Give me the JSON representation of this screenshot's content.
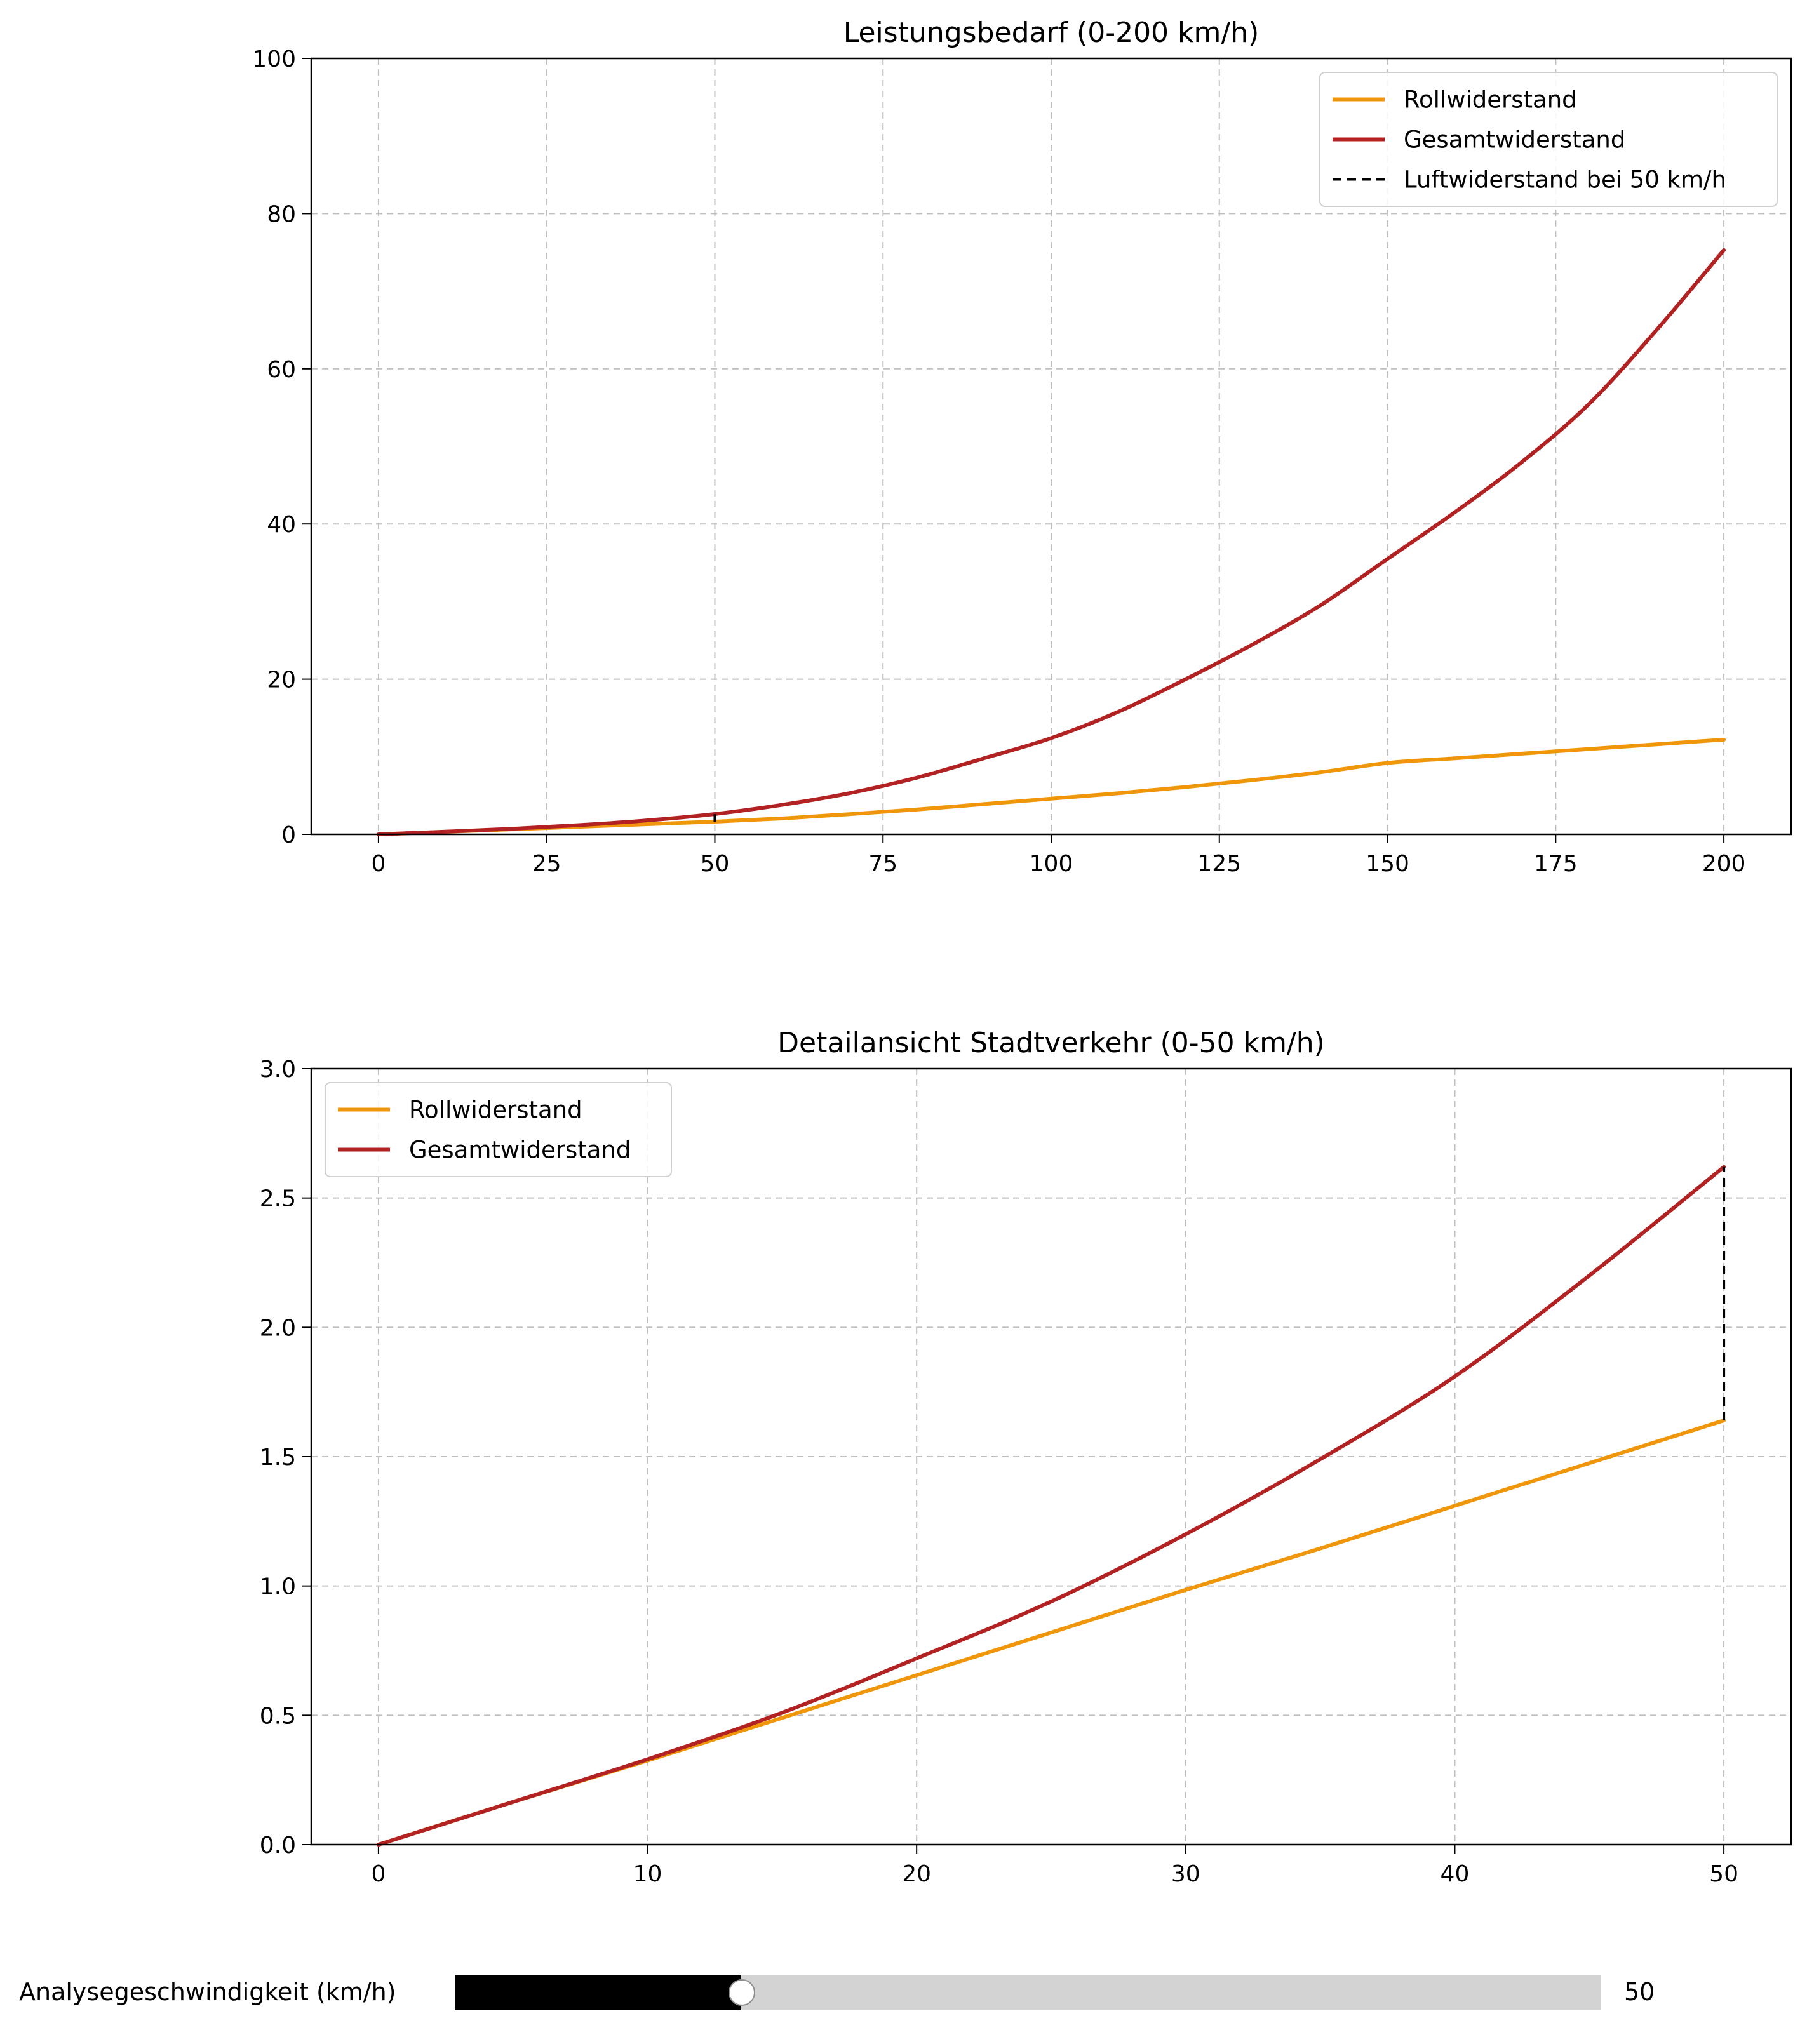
{
  "chart_data": [
    {
      "type": "line",
      "title": "Leistungsbedarf (0-200 km/h)",
      "xlabel": "",
      "ylabel": "",
      "xlim": [
        -10,
        210
      ],
      "ylim": [
        0,
        100
      ],
      "xticks": [
        0,
        25,
        50,
        75,
        100,
        125,
        150,
        175,
        200
      ],
      "yticks": [
        0,
        20,
        40,
        60,
        80,
        100
      ],
      "tick_labels_x": [
        "0",
        "25",
        "50",
        "75",
        "100",
        "125",
        "150",
        "175",
        "200"
      ],
      "tick_labels_y": [
        "0",
        "20",
        "40",
        "60",
        "80",
        "100"
      ],
      "grid": true,
      "legend_position": "top-right",
      "legend": [
        "Rollwiderstand",
        "Gesamtwiderstand",
        "Luftwiderstand bei 50 km/h"
      ],
      "x": [
        0,
        10,
        20,
        30,
        40,
        50,
        60,
        70,
        80,
        90,
        100,
        110,
        120,
        130,
        140,
        150,
        160,
        170,
        180,
        190,
        200
      ],
      "series": [
        {
          "name": "Rollwiderstand",
          "color": "#f0960a",
          "style": "solid",
          "values": [
            0,
            0.33,
            0.65,
            0.98,
            1.31,
            1.64,
            2.05,
            2.6,
            3.2,
            3.9,
            4.6,
            5.3,
            6.1,
            7.0,
            8.0,
            9.2,
            9.8,
            10.4,
            11.0,
            11.6,
            12.2
          ]
        },
        {
          "name": "Gesamtwiderstand",
          "color": "#b22222",
          "style": "solid",
          "values": [
            0,
            0.35,
            0.72,
            1.2,
            1.8,
            2.62,
            3.8,
            5.3,
            7.3,
            9.8,
            12.4,
            15.8,
            20.0,
            24.5,
            29.5,
            35.5,
            41.5,
            48.0,
            55.5,
            65.0,
            75.3
          ]
        },
        {
          "name": "Luftwiderstand bei 50 km/h",
          "color": "#000000",
          "style": "dashed",
          "segment": {
            "x": 50,
            "y0": 1.64,
            "y1": 2.62
          }
        }
      ]
    },
    {
      "type": "line",
      "title": "Detailansicht Stadtverkehr (0-50 km/h)",
      "xlabel": "",
      "ylabel": "",
      "xlim": [
        -2.5,
        52.5
      ],
      "ylim": [
        0,
        3
      ],
      "xticks": [
        0,
        10,
        20,
        30,
        40,
        50
      ],
      "yticks": [
        0,
        0.5,
        1.0,
        1.5,
        2.0,
        2.5,
        3.0
      ],
      "tick_labels_x": [
        "0",
        "10",
        "20",
        "30",
        "40",
        "50"
      ],
      "tick_labels_y": [
        "0.0",
        "0.5",
        "1.0",
        "1.5",
        "2.0",
        "2.5",
        "3.0"
      ],
      "grid": true,
      "legend_position": "top-left",
      "legend": [
        "Rollwiderstand",
        "Gesamtwiderstand"
      ],
      "x": [
        0,
        5,
        10,
        15,
        20,
        25,
        30,
        35,
        40,
        45,
        50
      ],
      "series": [
        {
          "name": "Rollwiderstand",
          "color": "#f0960a",
          "style": "solid",
          "values": [
            0,
            0.165,
            0.325,
            0.49,
            0.655,
            0.82,
            0.985,
            1.145,
            1.31,
            1.475,
            1.64
          ]
        },
        {
          "name": "",
          "legend_hidden": true,
          "color": "#b22222",
          "style": "solid",
          "values": [
            0,
            0.165,
            0.33,
            0.51,
            0.72,
            0.94,
            1.2,
            1.49,
            1.81,
            2.2,
            2.62
          ]
        },
        {
          "name": "",
          "color": "#000000",
          "style": "dashed",
          "segment": {
            "x": 50,
            "y0": 1.64,
            "y1": 2.62
          }
        }
      ]
    }
  ],
  "slider": {
    "label": "Analysegeschwindigkeit (km/h)",
    "value": 50,
    "value_text": "50",
    "min": 0,
    "max": 200,
    "fill_color": "#000000",
    "track_color": "#d3d3d3"
  }
}
